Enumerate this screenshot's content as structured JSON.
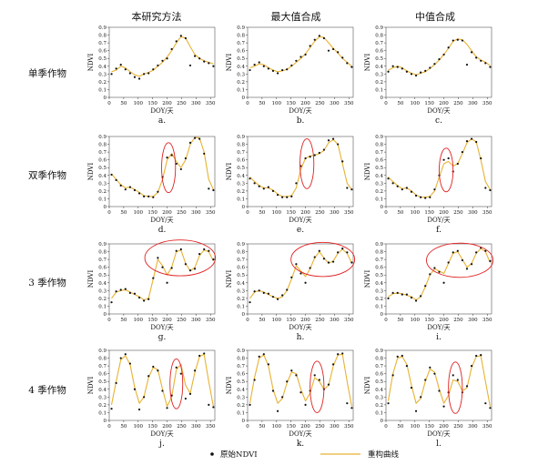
{
  "column_titles": [
    "本研究方法",
    "最大值合成",
    "中值合成"
  ],
  "row_labels": [
    "单季作物",
    "双季作物",
    "3 季作物",
    "4 季作物"
  ],
  "axis": {
    "xlabel": "DOY/天",
    "ylabel": "NDVI",
    "xlim": [
      0,
      365
    ],
    "ylim": [
      0,
      0.9
    ],
    "xticks": [
      0,
      50,
      100,
      150,
      200,
      250,
      300,
      350
    ],
    "yticks": [
      0,
      0.1,
      0.2,
      0.3,
      0.4,
      0.5,
      0.6,
      0.7,
      0.8,
      0.9
    ]
  },
  "legend": {
    "points_label": "原始NDVI",
    "curve_label": "重构曲线",
    "curve_color": "#e7b233",
    "point_color": "#111111",
    "ellipse_color": "#e02020"
  },
  "chart_data": [
    {
      "label": "a.",
      "type": "line",
      "x": [
        8,
        24,
        40,
        56,
        72,
        88,
        104,
        120,
        136,
        152,
        168,
        184,
        200,
        216,
        232,
        248,
        264,
        280,
        296,
        312,
        328,
        344,
        360
      ],
      "curve": [
        0.33,
        0.35,
        0.4,
        0.38,
        0.33,
        0.29,
        0.27,
        0.3,
        0.32,
        0.35,
        0.4,
        0.45,
        0.52,
        0.6,
        0.7,
        0.78,
        0.76,
        0.65,
        0.55,
        0.5,
        0.47,
        0.45,
        0.43
      ],
      "points": [
        0.3,
        0.37,
        0.42,
        0.36,
        0.31,
        0.26,
        0.24,
        0.3,
        0.31,
        0.36,
        0.41,
        0.47,
        0.5,
        0.62,
        0.72,
        0.79,
        0.76,
        0.41,
        0.53,
        0.5,
        0.46,
        0.44,
        0.4
      ],
      "highlight": null
    },
    {
      "label": "b.",
      "type": "line",
      "x": [
        8,
        24,
        40,
        56,
        72,
        88,
        104,
        120,
        136,
        152,
        168,
        184,
        200,
        216,
        232,
        248,
        264,
        280,
        296,
        312,
        328,
        344,
        360
      ],
      "curve": [
        0.38,
        0.4,
        0.43,
        0.42,
        0.38,
        0.35,
        0.33,
        0.34,
        0.36,
        0.4,
        0.45,
        0.5,
        0.56,
        0.64,
        0.72,
        0.78,
        0.77,
        0.7,
        0.63,
        0.57,
        0.5,
        0.45,
        0.4
      ],
      "points": [
        0.35,
        0.42,
        0.45,
        0.4,
        0.37,
        0.34,
        0.31,
        0.35,
        0.36,
        0.41,
        0.47,
        0.52,
        0.55,
        0.66,
        0.74,
        0.79,
        0.76,
        0.6,
        0.62,
        0.58,
        0.51,
        0.44,
        0.39
      ],
      "highlight": null
    },
    {
      "label": "c.",
      "type": "line",
      "x": [
        8,
        24,
        40,
        56,
        72,
        88,
        104,
        120,
        136,
        152,
        168,
        184,
        200,
        216,
        232,
        248,
        264,
        280,
        296,
        312,
        328,
        344,
        360
      ],
      "curve": [
        0.35,
        0.38,
        0.4,
        0.38,
        0.34,
        0.31,
        0.29,
        0.31,
        0.33,
        0.37,
        0.42,
        0.48,
        0.55,
        0.63,
        0.72,
        0.75,
        0.74,
        0.68,
        0.6,
        0.52,
        0.48,
        0.45,
        0.41
      ],
      "points": [
        0.33,
        0.4,
        0.39,
        0.37,
        0.33,
        0.3,
        0.28,
        0.32,
        0.34,
        0.38,
        0.43,
        0.49,
        0.55,
        0.64,
        0.73,
        0.74,
        0.73,
        0.42,
        0.58,
        0.51,
        0.47,
        0.44,
        0.39
      ],
      "highlight": null
    },
    {
      "label": "d.",
      "type": "line",
      "x": [
        8,
        24,
        40,
        56,
        72,
        88,
        104,
        120,
        136,
        152,
        168,
        184,
        200,
        216,
        232,
        248,
        264,
        280,
        296,
        312,
        328,
        344,
        360
      ],
      "curve": [
        0.42,
        0.35,
        0.28,
        0.24,
        0.25,
        0.22,
        0.18,
        0.14,
        0.13,
        0.13,
        0.18,
        0.35,
        0.6,
        0.68,
        0.58,
        0.5,
        0.6,
        0.8,
        0.89,
        0.88,
        0.7,
        0.35,
        0.22
      ],
      "points": [
        0.41,
        0.34,
        0.27,
        0.22,
        0.25,
        0.21,
        0.17,
        0.13,
        0.13,
        0.12,
        0.19,
        0.38,
        0.63,
        0.66,
        0.55,
        0.48,
        0.62,
        0.82,
        0.88,
        0.87,
        0.68,
        0.23,
        0.21
      ],
      "highlight": {
        "cx": 205,
        "cy": 0.5,
        "rx": 24,
        "ry": 0.32
      }
    },
    {
      "label": "e.",
      "type": "line",
      "x": [
        8,
        24,
        40,
        56,
        72,
        88,
        104,
        120,
        136,
        152,
        168,
        184,
        200,
        216,
        232,
        248,
        264,
        280,
        296,
        312,
        328,
        344,
        360
      ],
      "curve": [
        0.38,
        0.32,
        0.27,
        0.24,
        0.24,
        0.21,
        0.16,
        0.13,
        0.13,
        0.14,
        0.24,
        0.48,
        0.62,
        0.65,
        0.66,
        0.68,
        0.72,
        0.82,
        0.86,
        0.8,
        0.55,
        0.3,
        0.22
      ],
      "points": [
        0.36,
        0.3,
        0.26,
        0.23,
        0.25,
        0.2,
        0.15,
        0.12,
        0.12,
        0.13,
        0.3,
        0.52,
        0.62,
        0.64,
        0.66,
        0.69,
        0.73,
        0.85,
        0.87,
        0.8,
        0.58,
        0.24,
        0.22
      ],
      "highlight": {
        "cx": 205,
        "cy": 0.55,
        "rx": 24,
        "ry": 0.32
      }
    },
    {
      "label": "f.",
      "type": "line",
      "x": [
        8,
        24,
        40,
        56,
        72,
        88,
        104,
        120,
        136,
        152,
        168,
        184,
        200,
        216,
        232,
        248,
        264,
        280,
        296,
        312,
        328,
        344,
        360
      ],
      "curve": [
        0.38,
        0.32,
        0.27,
        0.23,
        0.24,
        0.2,
        0.15,
        0.12,
        0.12,
        0.13,
        0.2,
        0.38,
        0.55,
        0.58,
        0.52,
        0.55,
        0.68,
        0.82,
        0.87,
        0.83,
        0.6,
        0.32,
        0.22
      ],
      "points": [
        0.36,
        0.3,
        0.26,
        0.22,
        0.24,
        0.19,
        0.14,
        0.12,
        0.11,
        0.12,
        0.22,
        0.4,
        0.6,
        0.62,
        0.45,
        0.55,
        0.7,
        0.84,
        0.87,
        0.83,
        0.62,
        0.24,
        0.21
      ],
      "highlight": {
        "cx": 208,
        "cy": 0.47,
        "rx": 24,
        "ry": 0.28
      }
    },
    {
      "label": "g.",
      "type": "line",
      "x": [
        8,
        24,
        40,
        56,
        72,
        88,
        104,
        120,
        136,
        152,
        168,
        184,
        200,
        216,
        232,
        248,
        264,
        280,
        296,
        312,
        328,
        344,
        360
      ],
      "curve": [
        0.2,
        0.28,
        0.3,
        0.31,
        0.28,
        0.25,
        0.22,
        0.18,
        0.2,
        0.45,
        0.7,
        0.62,
        0.5,
        0.6,
        0.8,
        0.82,
        0.65,
        0.55,
        0.6,
        0.75,
        0.82,
        0.8,
        0.68
      ],
      "points": [
        0.15,
        0.29,
        0.31,
        0.32,
        0.27,
        0.26,
        0.21,
        0.17,
        0.19,
        0.46,
        0.72,
        0.6,
        0.4,
        0.59,
        0.81,
        0.83,
        0.64,
        0.56,
        0.58,
        0.77,
        0.83,
        0.81,
        0.7
      ],
      "highlight": {
        "cx": 245,
        "cy": 0.72,
        "rx": 122,
        "ry": 0.23
      }
    },
    {
      "label": "h.",
      "type": "line",
      "x": [
        8,
        24,
        40,
        56,
        72,
        88,
        104,
        120,
        136,
        152,
        168,
        184,
        200,
        216,
        232,
        248,
        264,
        280,
        296,
        312,
        328,
        344,
        360
      ],
      "curve": [
        0.2,
        0.28,
        0.3,
        0.28,
        0.25,
        0.22,
        0.2,
        0.22,
        0.3,
        0.45,
        0.62,
        0.55,
        0.48,
        0.58,
        0.72,
        0.8,
        0.72,
        0.65,
        0.68,
        0.78,
        0.83,
        0.78,
        0.65
      ],
      "points": [
        0.15,
        0.29,
        0.3,
        0.27,
        0.26,
        0.22,
        0.19,
        0.24,
        0.31,
        0.47,
        0.64,
        0.52,
        0.4,
        0.59,
        0.73,
        0.81,
        0.71,
        0.66,
        0.67,
        0.79,
        0.84,
        0.79,
        0.66
      ],
      "highlight": {
        "cx": 260,
        "cy": 0.7,
        "rx": 110,
        "ry": 0.22
      }
    },
    {
      "label": "i.",
      "type": "line",
      "x": [
        8,
        24,
        40,
        56,
        72,
        88,
        104,
        120,
        136,
        152,
        168,
        184,
        200,
        216,
        232,
        248,
        264,
        280,
        296,
        312,
        328,
        344,
        360
      ],
      "curve": [
        0.22,
        0.26,
        0.27,
        0.26,
        0.24,
        0.22,
        0.18,
        0.22,
        0.35,
        0.5,
        0.58,
        0.55,
        0.52,
        0.65,
        0.78,
        0.8,
        0.7,
        0.6,
        0.65,
        0.78,
        0.84,
        0.8,
        0.66
      ],
      "points": [
        0.2,
        0.27,
        0.27,
        0.25,
        0.25,
        0.21,
        0.17,
        0.23,
        0.36,
        0.51,
        0.59,
        0.54,
        0.4,
        0.66,
        0.79,
        0.81,
        0.69,
        0.58,
        0.64,
        0.79,
        0.85,
        0.81,
        0.68
      ],
      "highlight": {
        "cx": 255,
        "cy": 0.69,
        "rx": 115,
        "ry": 0.22
      }
    },
    {
      "label": "j.",
      "type": "line",
      "x": [
        8,
        24,
        40,
        56,
        72,
        88,
        104,
        120,
        136,
        152,
        168,
        184,
        200,
        216,
        232,
        248,
        264,
        280,
        296,
        312,
        328,
        344,
        360
      ],
      "curve": [
        0.2,
        0.5,
        0.78,
        0.83,
        0.72,
        0.42,
        0.22,
        0.3,
        0.55,
        0.68,
        0.65,
        0.4,
        0.18,
        0.3,
        0.65,
        0.72,
        0.45,
        0.35,
        0.62,
        0.82,
        0.85,
        0.5,
        0.18
      ],
      "points": [
        0.15,
        0.48,
        0.8,
        0.85,
        0.73,
        0.4,
        0.14,
        0.3,
        0.57,
        0.69,
        0.64,
        0.38,
        0.16,
        0.32,
        0.68,
        0.6,
        0.28,
        0.34,
        0.64,
        0.83,
        0.86,
        0.2,
        0.17
      ],
      "highlight": {
        "cx": 232,
        "cy": 0.47,
        "rx": 22,
        "ry": 0.32
      }
    },
    {
      "label": "k.",
      "type": "line",
      "x": [
        8,
        24,
        40,
        56,
        72,
        88,
        104,
        120,
        136,
        152,
        168,
        184,
        200,
        216,
        232,
        248,
        264,
        280,
        296,
        312,
        328,
        344,
        360
      ],
      "curve": [
        0.22,
        0.55,
        0.8,
        0.84,
        0.7,
        0.4,
        0.22,
        0.28,
        0.48,
        0.62,
        0.6,
        0.4,
        0.25,
        0.35,
        0.55,
        0.5,
        0.4,
        0.45,
        0.7,
        0.84,
        0.85,
        0.5,
        0.18
      ],
      "points": [
        0.2,
        0.52,
        0.82,
        0.85,
        0.72,
        0.38,
        0.12,
        0.3,
        0.5,
        0.64,
        0.58,
        0.36,
        0.2,
        0.38,
        0.58,
        0.52,
        0.4,
        0.46,
        0.72,
        0.85,
        0.86,
        0.22,
        0.16
      ],
      "highlight": {
        "cx": 240,
        "cy": 0.43,
        "rx": 24,
        "ry": 0.33
      }
    },
    {
      "label": "l.",
      "type": "line",
      "x": [
        8,
        24,
        40,
        56,
        72,
        88,
        104,
        120,
        136,
        152,
        168,
        184,
        200,
        216,
        232,
        248,
        264,
        280,
        296,
        312,
        328,
        344,
        360
      ],
      "curve": [
        0.25,
        0.6,
        0.8,
        0.82,
        0.72,
        0.45,
        0.22,
        0.28,
        0.5,
        0.66,
        0.62,
        0.4,
        0.22,
        0.32,
        0.52,
        0.5,
        0.38,
        0.42,
        0.68,
        0.82,
        0.83,
        0.5,
        0.18
      ],
      "points": [
        0.22,
        0.58,
        0.82,
        0.83,
        0.7,
        0.42,
        0.12,
        0.3,
        0.52,
        0.68,
        0.6,
        0.38,
        0.18,
        0.36,
        0.58,
        0.52,
        0.36,
        0.44,
        0.7,
        0.83,
        0.84,
        0.22,
        0.16
      ],
      "highlight": {
        "cx": 240,
        "cy": 0.42,
        "rx": 24,
        "ry": 0.33
      }
    }
  ]
}
